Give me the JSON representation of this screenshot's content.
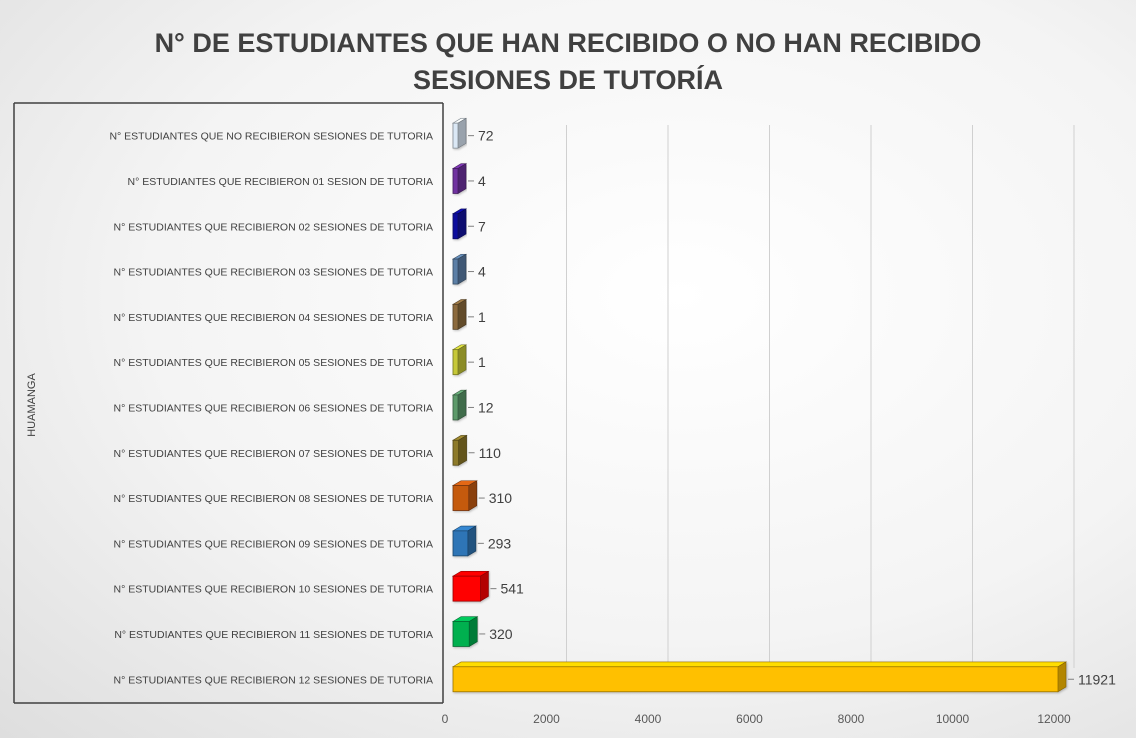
{
  "chart_data": {
    "type": "bar",
    "orientation": "horizontal",
    "title": "N° DE ESTUDIANTES QUE HAN RECIBIDO O NO HAN RECIBIDO SESIONES DE TUTORÍA",
    "title_lines": [
      "N° DE ESTUDIANTES QUE HAN RECIBIDO O NO HAN RECIBIDO",
      "SESIONES DE TUTORÍA"
    ],
    "group_label": "HUAMANGA",
    "xlim": [
      0,
      12000
    ],
    "x_ticks": [
      0,
      2000,
      4000,
      6000,
      8000,
      10000,
      12000
    ],
    "grid": true,
    "categories": [
      "N° ESTUDIANTES QUE NO RECIBIERON SESIONES DE TUTORIA",
      "N° ESTUDIANTES QUE RECIBIERON 01 SESION DE TUTORIA",
      "N° ESTUDIANTES QUE RECIBIERON 02 SESIONES DE TUTORIA",
      "N° ESTUDIANTES QUE RECIBIERON 03 SESIONES DE TUTORIA",
      "N° ESTUDIANTES QUE RECIBIERON 04 SESIONES DE TUTORIA",
      "N° ESTUDIANTES QUE RECIBIERON 05 SESIONES DE TUTORIA",
      "N° ESTUDIANTES QUE RECIBIERON 06 SESIONES DE TUTORIA",
      "N° ESTUDIANTES QUE RECIBIERON 07 SESIONES DE TUTORIA",
      "N° ESTUDIANTES QUE RECIBIERON 08 SESIONES DE TUTORIA",
      "N° ESTUDIANTES QUE RECIBIERON 09 SESIONES DE TUTORIA",
      "N° ESTUDIANTES QUE RECIBIERON 10 SESIONES DE TUTORIA",
      "N° ESTUDIANTES QUE RECIBIERON 11 SESIONES DE TUTORIA",
      "N° ESTUDIANTES QUE RECIBIERON 12 SESIONES DE TUTORIA"
    ],
    "values": [
      72,
      4,
      7,
      4,
      1,
      1,
      12,
      110,
      310,
      293,
      541,
      320,
      11921
    ],
    "value_labels": [
      "72",
      "4",
      "7",
      "4",
      "1",
      "1",
      "12",
      "110",
      "310",
      "293",
      "541",
      "320",
      "11921"
    ],
    "colors": [
      "#dbe8f5",
      "#7030a0",
      "#0d0d9e",
      "#5b7fa6",
      "#8c6b3e",
      "#c6c839",
      "#5d9a6b",
      "#8d7a2a",
      "#c55a11",
      "#2e75b6",
      "#ff0000",
      "#00b050",
      "#ffc000"
    ]
  }
}
